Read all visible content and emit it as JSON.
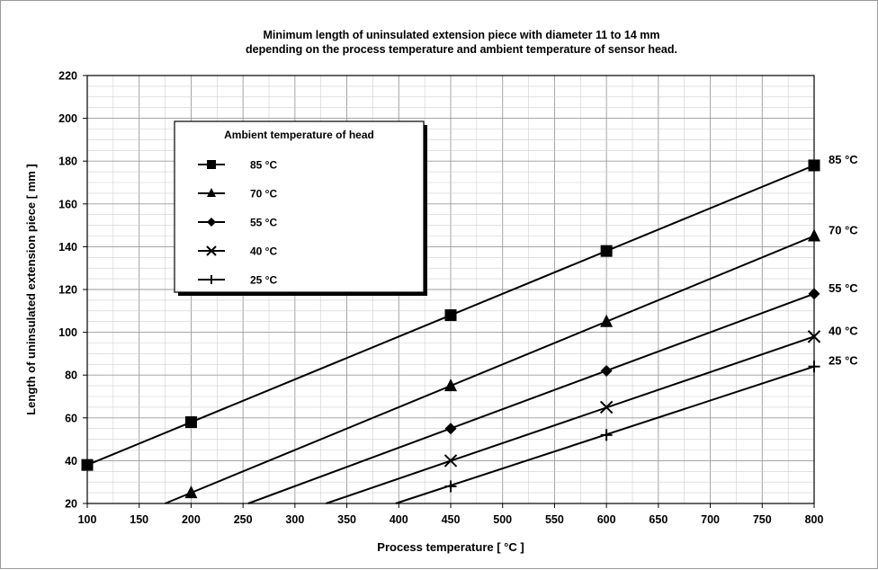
{
  "chart_data": {
    "type": "line",
    "title": [
      "Minimum length of uninsulated extension piece with diameter 11 to 14 mm",
      "depending on the process temperature and ambient temperature of sensor head."
    ],
    "xlabel": "Process temperature [ °C ]",
    "ylabel": "Length of uninsulated extension piece [ mm ]",
    "xlim": [
      100,
      800
    ],
    "ylim": [
      20,
      220
    ],
    "xticks": [
      100,
      150,
      200,
      250,
      300,
      350,
      400,
      450,
      500,
      550,
      600,
      650,
      700,
      750,
      800
    ],
    "yticks": [
      20,
      40,
      60,
      80,
      100,
      120,
      140,
      160,
      180,
      200,
      220
    ],
    "grid": true,
    "legend_title": "Ambient temperature of head",
    "legend_position": "upper-left",
    "series": [
      {
        "name": "85 °C",
        "marker": "square",
        "line_x": [
          100,
          800
        ],
        "line_y": [
          38,
          178
        ],
        "points": [
          [
            100,
            38
          ],
          [
            200,
            58
          ],
          [
            450,
            108
          ],
          [
            600,
            138
          ],
          [
            800,
            178
          ]
        ]
      },
      {
        "name": "70 °C",
        "marker": "triangle",
        "line_x": [
          175,
          800
        ],
        "line_y": [
          20,
          145
        ],
        "points": [
          [
            200,
            25
          ],
          [
            450,
            75
          ],
          [
            600,
            105
          ],
          [
            800,
            145
          ]
        ]
      },
      {
        "name": "55 °C",
        "marker": "diamond",
        "line_x": [
          255,
          800
        ],
        "line_y": [
          20,
          118
        ],
        "points": [
          [
            450,
            55
          ],
          [
            600,
            82
          ],
          [
            800,
            118
          ]
        ]
      },
      {
        "name": "40 °C",
        "marker": "cross-x",
        "line_x": [
          330,
          800
        ],
        "line_y": [
          20,
          98
        ],
        "points": [
          [
            450,
            40
          ],
          [
            600,
            65
          ],
          [
            800,
            98
          ]
        ]
      },
      {
        "name": "25 °C",
        "marker": "plus",
        "line_x": [
          397,
          800
        ],
        "line_y": [
          20,
          84
        ],
        "points": [
          [
            450,
            28
          ],
          [
            600,
            52
          ],
          [
            800,
            84
          ]
        ]
      }
    ]
  }
}
